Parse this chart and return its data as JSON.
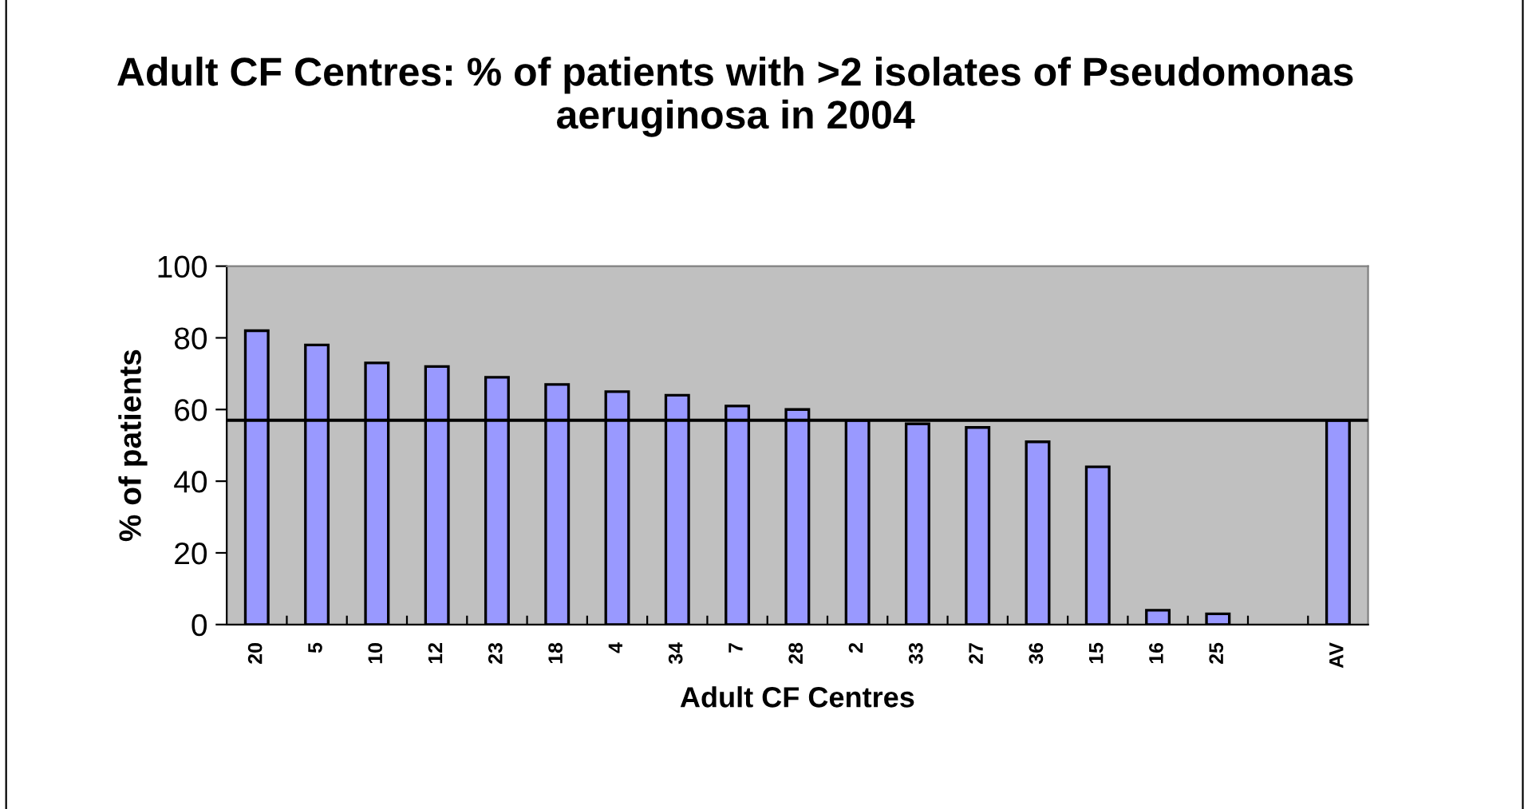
{
  "chart_data": {
    "type": "bar",
    "title": "Adult CF Centres: % of patients with >2 isolates of Pseudomonas aeruginosa in 2004",
    "xlabel": "Adult CF Centres",
    "ylabel": "% of patients",
    "categories": [
      "20",
      "5",
      "10",
      "12",
      "23",
      "18",
      "4",
      "34",
      "7",
      "28",
      "2",
      "33",
      "27",
      "36",
      "15",
      "16",
      "25",
      null,
      "AV"
    ],
    "values": [
      82,
      78,
      73,
      72,
      69,
      67,
      65,
      64,
      61,
      60,
      57,
      56,
      55,
      51,
      44,
      4,
      3,
      null,
      57
    ],
    "color": "#9999ff",
    "ylim": [
      0,
      100
    ],
    "yticks": [
      0,
      20,
      40,
      60,
      80,
      100
    ],
    "grid": false,
    "legend": false,
    "ref_lines": [
      {
        "axis": "y",
        "value": 57,
        "color": "#000000"
      }
    ]
  }
}
